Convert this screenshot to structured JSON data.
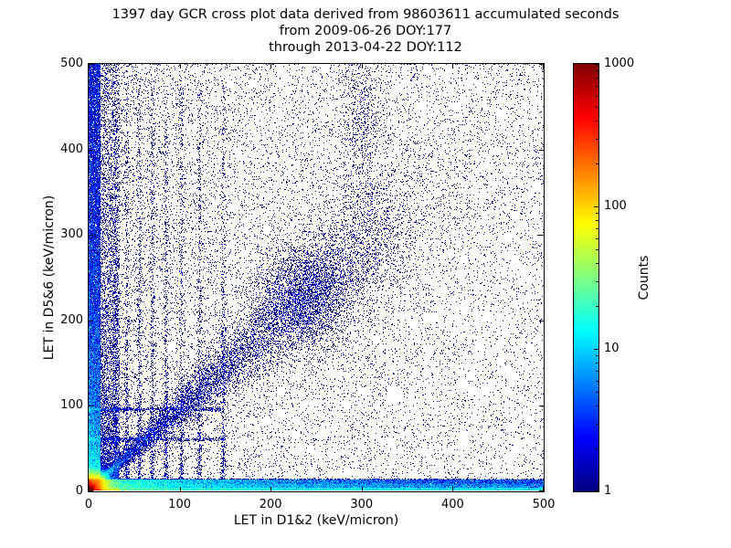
{
  "figure": {
    "background": "#ffffff",
    "axis_color": "#000000"
  },
  "chart_data": {
    "type": "heatmap",
    "title_lines": [
      "1397 day GCR cross plot data derived from 98603611 accumulated seconds",
      "from 2009-06-26 DOY:177",
      "through 2013-04-22 DOY:112"
    ],
    "xlabel": "LET in D1&2 (keV/micron)",
    "ylabel": "LET in D5&6 (keV/micron)",
    "xlim": [
      0,
      500
    ],
    "ylim": [
      0,
      500
    ],
    "xticks": [
      "0",
      "100",
      "200",
      "300",
      "400",
      "500"
    ],
    "yticks": [
      "0",
      "100",
      "200",
      "300",
      "400",
      "500"
    ],
    "grid": false,
    "legend": "none",
    "colorbar": {
      "label": "Counts",
      "scale": "log",
      "min": 1,
      "max": 1000,
      "tick_labels": [
        "1000",
        "100",
        "10",
        "1"
      ],
      "tick_values": [
        1000,
        100,
        10,
        1
      ],
      "colormap": "jet"
    },
    "features": [
      {
        "name": "origin-core",
        "type": "gaussian",
        "cx": 2.5,
        "cy": 2.5,
        "sx": 2.5,
        "sy": 2.5,
        "points": 25000
      },
      {
        "name": "origin-hotspot",
        "type": "gaussian",
        "cx": 5,
        "cy": 5,
        "sx": 8,
        "sy": 8,
        "points": 55000
      },
      {
        "name": "bottom-band",
        "type": "band_bottom",
        "ymax": 13,
        "xpow": 2.6,
        "points": 58000
      },
      {
        "name": "bottom-band-far",
        "type": "band_bottom",
        "ymax": 8,
        "xpow": 1.0,
        "points": 8000
      },
      {
        "name": "baseline-row",
        "type": "band_bottom",
        "ymax": 3,
        "xpow": 1.0,
        "points": 9000
      },
      {
        "name": "left-band",
        "type": "band_left",
        "xmax": 13,
        "ypow": 2.8,
        "points": 30000
      },
      {
        "name": "left-inner",
        "type": "band_left",
        "xmax": 34,
        "ypow": 3.4,
        "points": 10000
      },
      {
        "name": "main-diagonal",
        "type": "diagonal",
        "len": 335,
        "slope": 0.95,
        "spread": 0.07,
        "pow": 1.4,
        "points": 9000
      },
      {
        "name": "diagonal-sparse",
        "type": "diagonal",
        "len": 500,
        "slope": 0.95,
        "spread": 0.12,
        "pow": 1.0,
        "points": 2000
      },
      {
        "name": "diagonal-blob",
        "type": "gaussian",
        "cx": 238,
        "cy": 228,
        "sx": 26,
        "sy": 34,
        "points": 2600
      },
      {
        "name": "upper-column-300",
        "type": "gaussian",
        "cx": 300,
        "cy": 430,
        "sx": 13,
        "sy": 60,
        "points": 800
      },
      {
        "name": "vertical-streaks",
        "type": "streaks_v",
        "xs": [
          30,
          42,
          56,
          70,
          85,
          102,
          122,
          148
        ],
        "ymax": 480,
        "ypow": 2.1,
        "points_each": 620
      },
      {
        "name": "horizontal-streaks",
        "type": "streaks_h",
        "ys": [
          60,
          95
        ],
        "xmax": 150,
        "xpow": 2.0,
        "points_each": 700
      },
      {
        "name": "background-scatter",
        "type": "background",
        "xpow": 1.6,
        "ypow": 1.0,
        "points": 17000
      }
    ],
    "render": {
      "seed": 1397
    }
  }
}
